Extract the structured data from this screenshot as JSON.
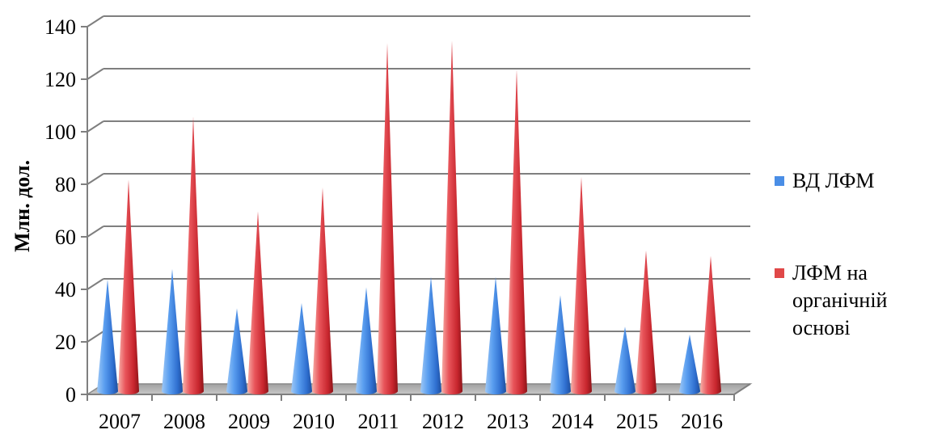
{
  "chart_data": {
    "type": "bar",
    "style": "3d-cone",
    "categories": [
      "2007",
      "2008",
      "2009",
      "2010",
      "2011",
      "2012",
      "2013",
      "2014",
      "2015",
      "2016"
    ],
    "series": [
      {
        "name": "ВД ЛФМ",
        "color": "#4a8ee6",
        "values": [
          41,
          45,
          30,
          32,
          38,
          42,
          42,
          35,
          23,
          20
        ]
      },
      {
        "name": "ЛФМ на органічній основі",
        "color": "#e04848",
        "values": [
          79,
          103,
          67,
          76,
          131,
          132,
          121,
          80,
          52,
          50
        ]
      }
    ],
    "legend_lines": [
      [
        "ВД ЛФМ"
      ],
      [
        "ЛФМ на",
        "органічній",
        "основі"
      ]
    ],
    "title": "",
    "xlabel": "",
    "ylabel": "Млн. дол.",
    "ylim": [
      0,
      140
    ],
    "yticks": [
      0,
      20,
      40,
      60,
      80,
      100,
      120,
      140
    ],
    "grid": true,
    "legend_position": "right"
  }
}
